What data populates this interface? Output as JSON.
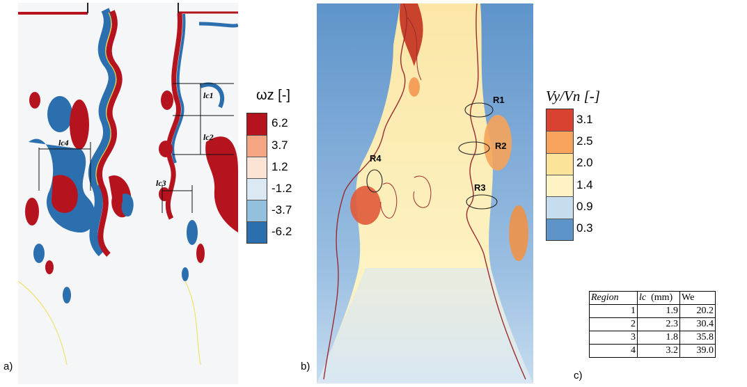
{
  "panels": {
    "a": {
      "letter": "a)"
    },
    "b": {
      "letter": "b)"
    },
    "c": {
      "letter": "c)"
    }
  },
  "panel_a": {
    "colorbar": {
      "title": "ωz [-]",
      "ticks": [
        "6.2",
        "3.7",
        "1.2",
        "-1.2",
        "-3.7",
        "-6.2"
      ],
      "colors": [
        "#b5141f",
        "#f4a582",
        "#fbe3d6",
        "#dbe9f4",
        "#92c0dd",
        "#2c6fae"
      ]
    },
    "annotations": [
      "lc1",
      "lc2",
      "lc3",
      "lc4"
    ]
  },
  "panel_b": {
    "colorbar": {
      "title": "Vy/Vn [-]",
      "ticks": [
        "3.1",
        "2.5",
        "2.0",
        "1.4",
        "0.9",
        "0.3"
      ],
      "colors": [
        "#d94130",
        "#f7a35c",
        "#fbe39a",
        "#fdf3c4",
        "#c6dcef",
        "#5f94cb"
      ]
    },
    "regions": [
      "R1",
      "R2",
      "R3",
      "R4"
    ]
  },
  "table": {
    "headers": [
      "Region",
      "lc",
      "(mm)",
      "We"
    ],
    "rows": [
      {
        "region": "1",
        "lc": "1.9",
        "we": "20.2"
      },
      {
        "region": "2",
        "lc": "2.3",
        "we": "30.4"
      },
      {
        "region": "3",
        "lc": "1.8",
        "we": "35.8"
      },
      {
        "region": "4",
        "lc": "3.2",
        "we": "39.0"
      }
    ]
  }
}
